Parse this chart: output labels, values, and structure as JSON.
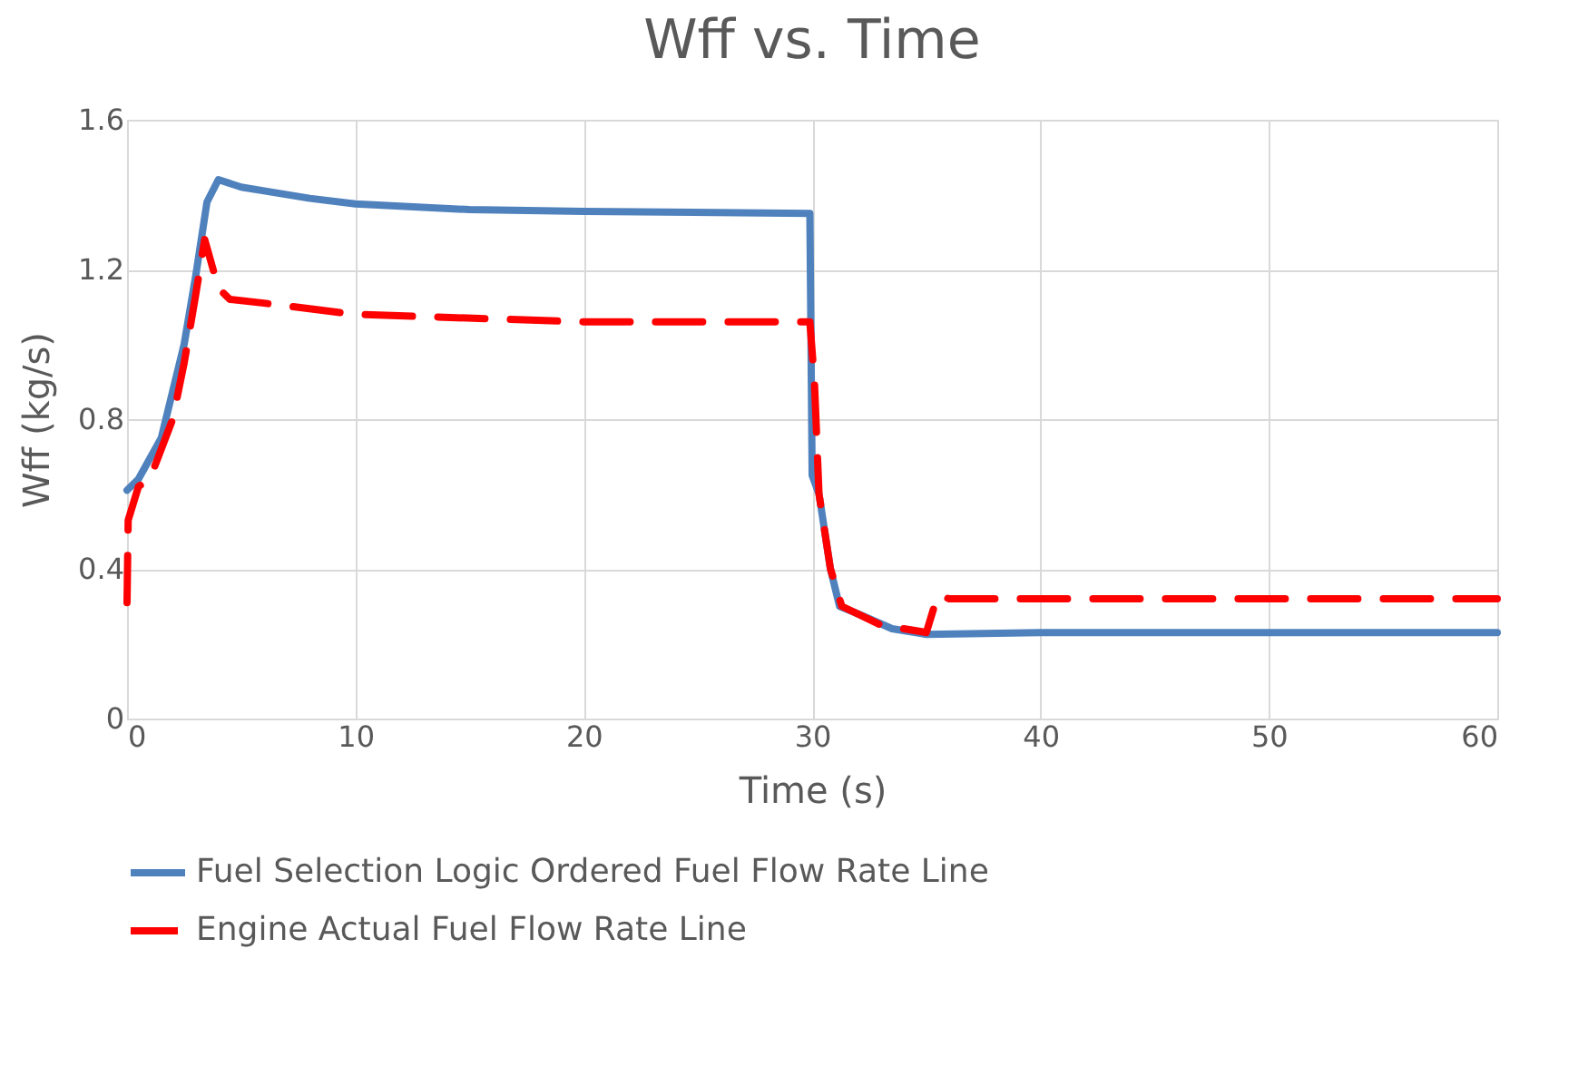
{
  "chart_data": {
    "type": "line",
    "title": "Wff vs. Time",
    "xlabel": "Time (s)",
    "ylabel": "Wff (kg/s)",
    "xlim": [
      0,
      60
    ],
    "xticks": [
      0,
      10,
      20,
      30,
      40,
      50,
      60
    ],
    "ylim": [
      0,
      1.6
    ],
    "yticks": [
      0,
      0.4,
      0.8,
      1.2,
      1.6
    ],
    "grid": true,
    "legend": "bottom",
    "series": [
      {
        "name": "Fuel Selection Logic Ordered Fuel Flow Rate Line",
        "color": "#4f81bd",
        "line_style": "solid",
        "x": [
          0,
          0.5,
          1.5,
          2.5,
          3,
          3.5,
          4,
          5,
          6,
          8,
          10,
          15,
          20,
          29.9,
          30,
          30.3,
          30.8,
          31.2,
          32,
          33.5,
          35,
          40,
          60
        ],
        "values": [
          0.61,
          0.64,
          0.75,
          1.0,
          1.18,
          1.38,
          1.44,
          1.42,
          1.41,
          1.39,
          1.375,
          1.36,
          1.355,
          1.35,
          0.65,
          0.6,
          0.4,
          0.3,
          0.28,
          0.24,
          0.225,
          0.23,
          0.23
        ]
      },
      {
        "name": "Engine Actual Fuel Flow Rate Line",
        "color": "#ff0000",
        "line_style": "dashed",
        "x": [
          0,
          0.05,
          0.5,
          1,
          2,
          2.5,
          3,
          3.4,
          4,
          4.5,
          6,
          10,
          20,
          29.9,
          30.1,
          30.3,
          30.8,
          31.3,
          33,
          35,
          35.5,
          36,
          60
        ],
        "values": [
          0.31,
          0.53,
          0.62,
          0.64,
          0.8,
          0.95,
          1.13,
          1.28,
          1.15,
          1.12,
          1.11,
          1.08,
          1.06,
          1.06,
          0.9,
          0.6,
          0.4,
          0.3,
          0.25,
          0.23,
          0.33,
          0.32,
          0.32
        ]
      }
    ]
  }
}
